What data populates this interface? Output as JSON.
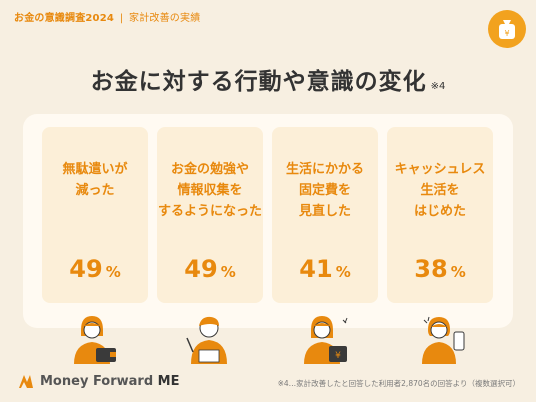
{
  "header": {
    "survey": "お金の意識調査2024",
    "separator": "|",
    "subtitle": "家計改善の実績"
  },
  "badge_icon": "money-bag-icon",
  "title": {
    "text": "お金に対する行動や意識の変化",
    "note": "※4"
  },
  "cards": [
    {
      "label": "無駄遣いが\n減った",
      "value": "49",
      "unit": "%",
      "illustration": "woman-with-wallet-icon"
    },
    {
      "label": "お金の勉強や\n情報収集を\nするようになった",
      "value": "49",
      "unit": "%",
      "illustration": "man-writing-notes-icon"
    },
    {
      "label": "生活にかかる\n固定費を\n見直した",
      "value": "41",
      "unit": "%",
      "illustration": "woman-with-bills-icon"
    },
    {
      "label": "キャッシュレス\n生活を\nはじめた",
      "value": "38",
      "unit": "%",
      "illustration": "woman-with-smartphone-icon"
    }
  ],
  "footer": {
    "logo_main": "Money Forward",
    "logo_suffix": "ME",
    "footnote": "※4…家計改善したと回答した利用者2,870名の回答より（複数選択可）"
  },
  "colors": {
    "accent": "#e8890e",
    "badge": "#f2a21e",
    "background": "#f7efe1",
    "card": "#fcefd8"
  }
}
